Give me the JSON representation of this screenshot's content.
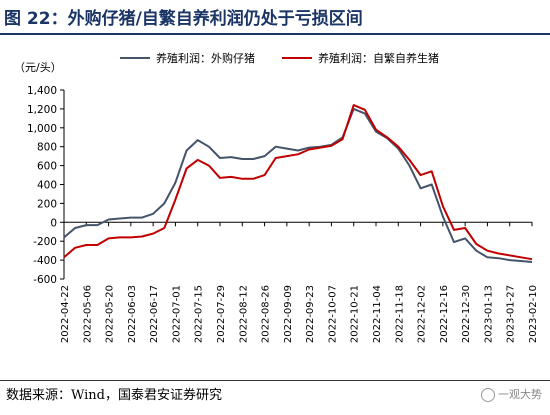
{
  "header": {
    "title": "图 22：外购仔猪/自繁自养利润仍处于亏损区间"
  },
  "footer": {
    "source": "数据来源：Wind，国泰君安证券研究",
    "watermark": "一观大势"
  },
  "chart_data": {
    "type": "line",
    "unit_label": "（元/头）",
    "ylim": [
      -600,
      1400
    ],
    "yticks": [
      -600,
      -400,
      -200,
      0,
      200,
      400,
      600,
      800,
      1000,
      1200,
      1400
    ],
    "x": [
      "2022-04-22",
      "2022-04-29",
      "2022-05-06",
      "2022-05-13",
      "2022-05-20",
      "2022-05-27",
      "2022-06-03",
      "2022-06-10",
      "2022-06-17",
      "2022-06-24",
      "2022-07-01",
      "2022-07-08",
      "2022-07-15",
      "2022-07-22",
      "2022-07-29",
      "2022-08-05",
      "2022-08-12",
      "2022-08-19",
      "2022-08-26",
      "2022-09-02",
      "2022-09-09",
      "2022-09-16",
      "2022-09-23",
      "2022-09-30",
      "2022-10-07",
      "2022-10-14",
      "2022-10-21",
      "2022-10-28",
      "2022-11-04",
      "2022-11-11",
      "2022-11-18",
      "2022-11-25",
      "2022-12-02",
      "2022-12-09",
      "2022-12-16",
      "2022-12-23",
      "2022-12-30",
      "2023-01-06",
      "2023-01-13",
      "2023-01-20",
      "2023-01-27",
      "2023-02-03",
      "2023-02-10"
    ],
    "xtick_labels": [
      "2022-04-22",
      "2022-05-06",
      "2022-05-20",
      "2022-06-03",
      "2022-06-17",
      "2022-07-01",
      "2022-07-15",
      "2022-07-29",
      "2022-08-12",
      "2022-08-26",
      "2022-09-09",
      "2022-09-23",
      "2022-10-07",
      "2022-10-21",
      "2022-11-04",
      "2022-11-18",
      "2022-12-02",
      "2022-12-16",
      "2022-12-30",
      "2023-01-13",
      "2023-01-27",
      "2023-02-10"
    ],
    "series": [
      {
        "name": "养殖利润：外购仔猪",
        "color": "#44546a",
        "values": [
          -160,
          -60,
          -30,
          -30,
          30,
          40,
          50,
          50,
          90,
          200,
          420,
          760,
          870,
          800,
          680,
          690,
          670,
          670,
          700,
          800,
          780,
          760,
          790,
          800,
          820,
          900,
          1200,
          1150,
          960,
          890,
          780,
          600,
          360,
          400,
          60,
          -210,
          -170,
          -300,
          -370,
          -380,
          -400,
          -410,
          -420
        ]
      },
      {
        "name": "养殖利润：自繁自养生猪",
        "color": "#c00000",
        "values": [
          -370,
          -270,
          -240,
          -240,
          -170,
          -160,
          -160,
          -150,
          -120,
          -60,
          240,
          570,
          660,
          600,
          470,
          480,
          460,
          460,
          500,
          680,
          700,
          720,
          770,
          790,
          810,
          880,
          1240,
          1190,
          980,
          900,
          800,
          660,
          500,
          540,
          170,
          -80,
          -60,
          -230,
          -300,
          -330,
          -350,
          -370,
          -390
        ]
      }
    ],
    "grid": false,
    "legend_position": "top"
  }
}
